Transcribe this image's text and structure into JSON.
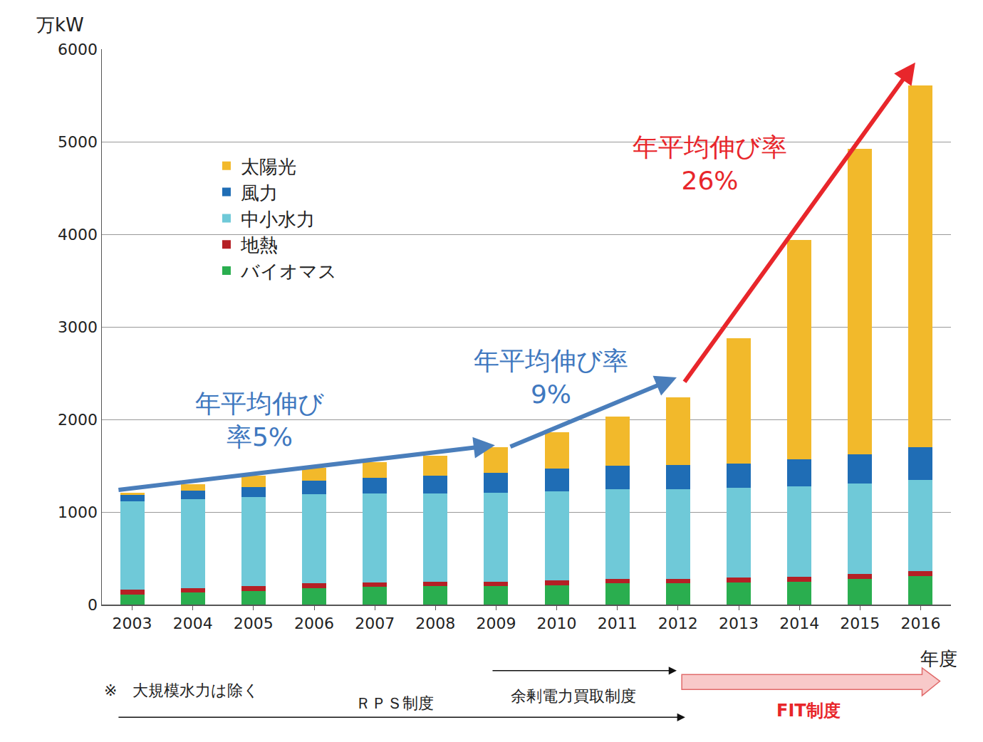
{
  "chart_data": {
    "type": "bar",
    "stacked": true,
    "y_label": "万kW",
    "x_label": "年度",
    "categories": [
      "2003",
      "2004",
      "2005",
      "2006",
      "2007",
      "2008",
      "2009",
      "2010",
      "2011",
      "2012",
      "2013",
      "2014",
      "2015",
      "2016"
    ],
    "series": [
      {
        "name": "バイオマス",
        "color": "#2aae4f",
        "values": [
          110,
          130,
          150,
          180,
          190,
          200,
          200,
          210,
          230,
          230,
          240,
          250,
          280,
          310
        ]
      },
      {
        "name": "地熱",
        "color": "#b52025",
        "values": [
          50,
          50,
          50,
          50,
          50,
          50,
          50,
          50,
          50,
          50,
          50,
          50,
          50,
          50
        ]
      },
      {
        "name": "中小水力",
        "color": "#6fc9d8",
        "values": [
          955,
          960,
          960,
          960,
          960,
          950,
          960,
          960,
          970,
          970,
          970,
          980,
          980,
          990
        ]
      },
      {
        "name": "風力",
        "color": "#1f6db5",
        "values": [
          70,
          90,
          110,
          150,
          170,
          190,
          210,
          250,
          250,
          260,
          260,
          290,
          310,
          350
        ]
      },
      {
        "name": "太陽光",
        "color": "#f2b92b",
        "values": [
          25,
          70,
          120,
          140,
          170,
          220,
          280,
          390,
          530,
          730,
          1360,
          2370,
          3300,
          3910
        ]
      }
    ],
    "ylim": [
      0,
      6000
    ],
    "yticks": [
      0,
      1000,
      2000,
      3000,
      4000,
      5000,
      6000
    ],
    "grid": true,
    "legend": "upper left",
    "annotations": [
      {
        "text": "年平均伸び\n率5%",
        "color": "#3f78bf"
      },
      {
        "text": "年平均伸び率\n9%",
        "color": "#3f78bf"
      },
      {
        "text": "年平均伸び率\n26%",
        "color": "#e8262b"
      },
      {
        "text": "※　大規模水力は除く",
        "color": "#222222"
      },
      {
        "text": "ＲＰＳ制度",
        "color": "#222222"
      },
      {
        "text": "余剰電力買取制度",
        "color": "#222222"
      },
      {
        "text": "FIT制度",
        "color": "#e8262b"
      }
    ]
  }
}
